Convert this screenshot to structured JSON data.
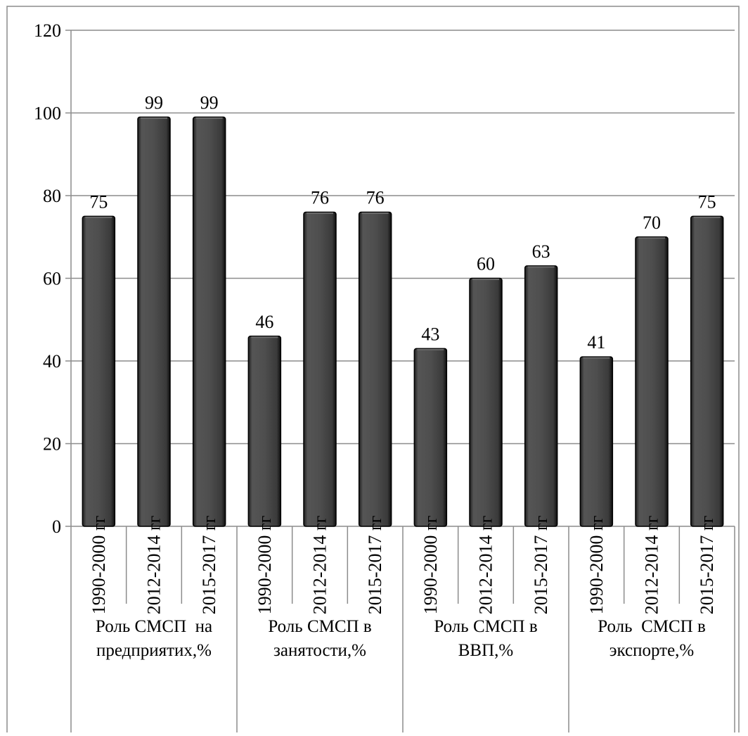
{
  "chart_data": {
    "type": "bar",
    "title": "",
    "xlabel": "",
    "ylabel": "",
    "ylim": [
      0,
      120
    ],
    "yticks": [
      0,
      20,
      40,
      60,
      80,
      100,
      120
    ],
    "grid": true,
    "legend": "none",
    "data_labels": true,
    "groups": [
      {
        "label_lines": [
          "Роль СМСП  на",
          "предприятих,%"
        ],
        "categories": [
          "1990-2000 гг",
          "2012-2014 гг",
          "2015-2017 гг"
        ],
        "values": [
          75,
          99,
          99
        ]
      },
      {
        "label_lines": [
          "Роль СМСП в",
          "занятости,%"
        ],
        "categories": [
          "1990-2000 гг",
          "2012-2014 гг",
          "2015-2017 гг"
        ],
        "values": [
          46,
          76,
          76
        ]
      },
      {
        "label_lines": [
          "Роль СМСП в",
          "ВВП,%"
        ],
        "categories": [
          "1990-2000 гг",
          "2012-2014 гг",
          "2015-2017 гг"
        ],
        "values": [
          43,
          60,
          63
        ]
      },
      {
        "label_lines": [
          "Роль  СМСП в",
          "экспорте,%"
        ],
        "categories": [
          "1990-2000 гг",
          "2012-2014 гг",
          "2015-2017 гг"
        ],
        "values": [
          41,
          70,
          75
        ]
      }
    ],
    "colors": {
      "bar_fill": "#4d4d4d",
      "bar_edge": "#000000",
      "bar_highlight": "#6a6a6a",
      "grid": "#8c8c8c",
      "axis": "#8c8c8c",
      "border": "#8c8c8c"
    }
  }
}
